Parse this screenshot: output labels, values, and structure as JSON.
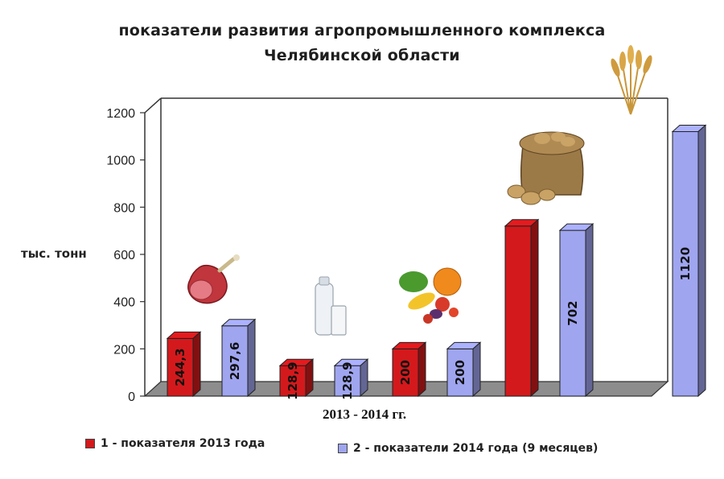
{
  "chart_data": {
    "type": "bar",
    "title": "показатели развития агропромышленного комплекса",
    "subtitle": "Челябинской области",
    "ylabel": "тыс. тонн",
    "xlabel": "2013 - 2014 гг.",
    "ylim": [
      0,
      1200
    ],
    "yticks": [
      0,
      200,
      400,
      600,
      800,
      1000,
      1200
    ],
    "categories": [
      "мясо",
      "молоко",
      "овощи",
      "картофель",
      "зерно"
    ],
    "series": [
      {
        "name": "1 - показателя 2013 года",
        "color": "#d4191c",
        "values": [
          244.3,
          128.9,
          200,
          720,
          null
        ],
        "labels": [
          "244,3",
          "128,9",
          "200",
          "",
          ""
        ]
      },
      {
        "name": "2 - показатели 2014 года (9 месяцев)",
        "color": "#9fa5ef",
        "values": [
          297.6,
          128.9,
          200,
          702,
          1120
        ],
        "labels": [
          "297,6",
          "128,9",
          "200",
          "702",
          "1120"
        ]
      }
    ],
    "legend_position": "bottom",
    "grid": false
  },
  "icons": [
    "ham-icon",
    "milk-icon",
    "vegetables-icon",
    "potato-sack-icon",
    "wheat-icon"
  ]
}
